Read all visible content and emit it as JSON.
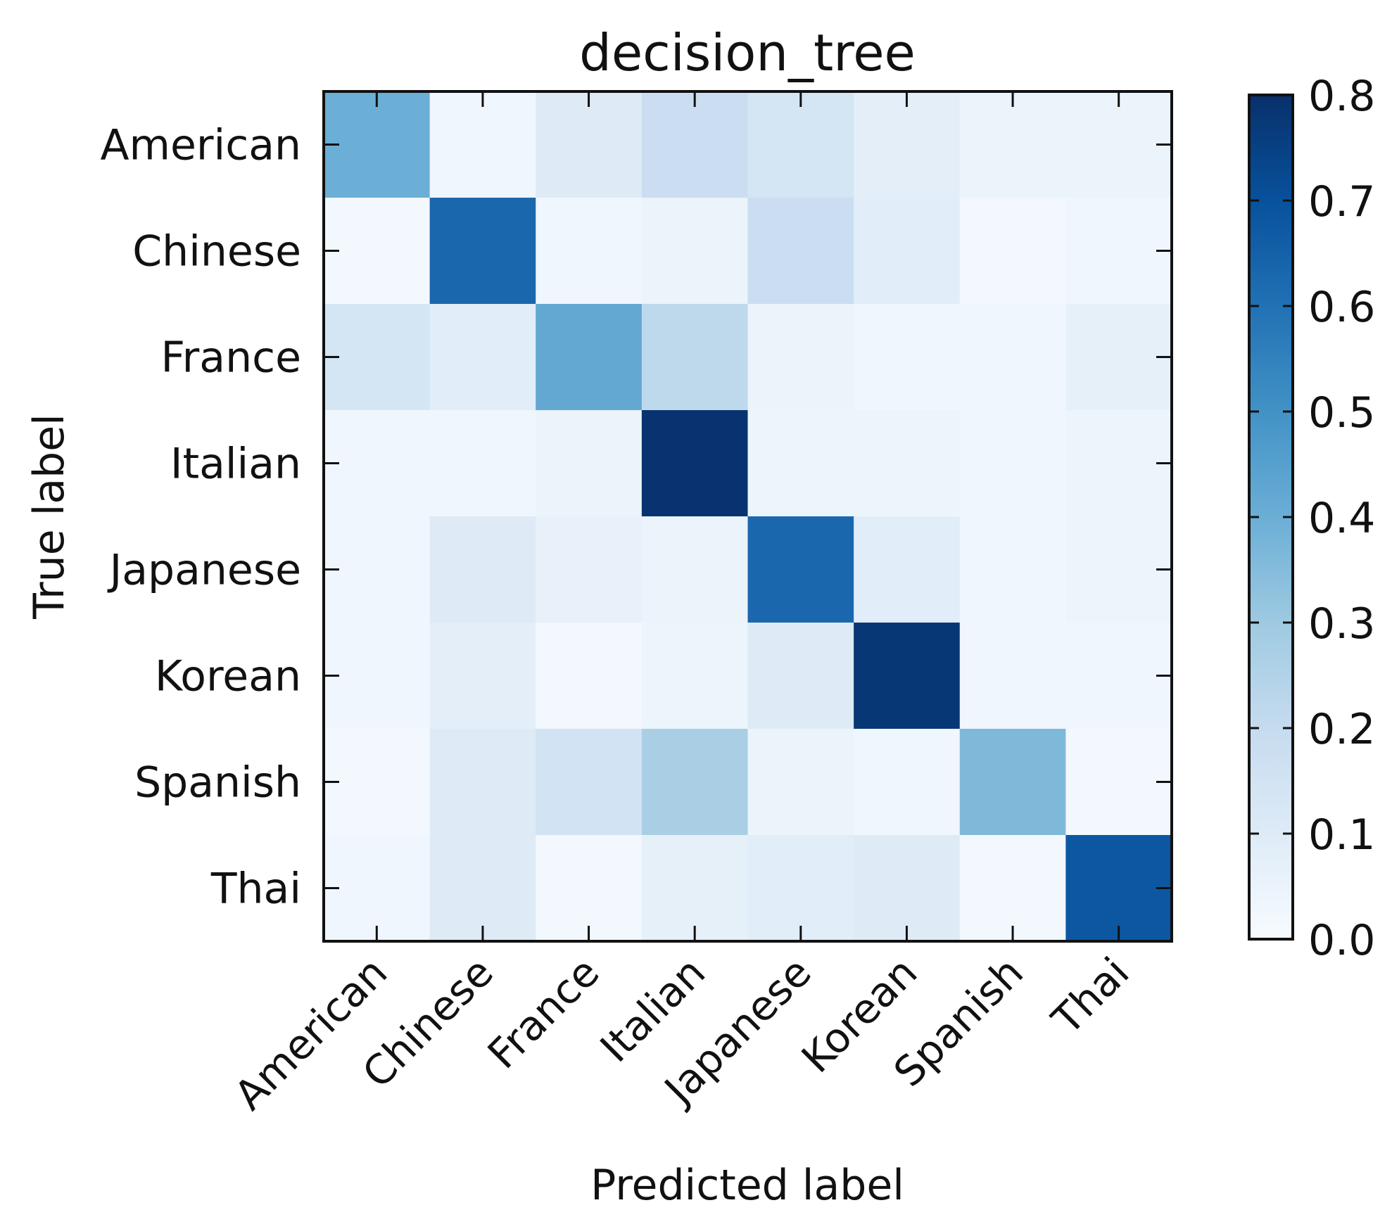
{
  "chart_data": {
    "type": "heatmap",
    "title": "decision_tree",
    "xlabel": "Predicted label",
    "ylabel": "True label",
    "x_categories": [
      "American",
      "Chinese",
      "France",
      "Italian",
      "Japanese",
      "Korean",
      "Spanish",
      "Thai"
    ],
    "y_categories": [
      "American",
      "Chinese",
      "France",
      "Italian",
      "Japanese",
      "Korean",
      "Spanish",
      "Thai"
    ],
    "values": [
      [
        0.4,
        0.03,
        0.1,
        0.18,
        0.14,
        0.08,
        0.05,
        0.05
      ],
      [
        0.02,
        0.63,
        0.03,
        0.05,
        0.18,
        0.09,
        0.02,
        0.03
      ],
      [
        0.14,
        0.09,
        0.42,
        0.22,
        0.05,
        0.03,
        0.03,
        0.07
      ],
      [
        0.03,
        0.03,
        0.05,
        0.79,
        0.04,
        0.04,
        0.03,
        0.04
      ],
      [
        0.03,
        0.1,
        0.06,
        0.05,
        0.63,
        0.09,
        0.03,
        0.04
      ],
      [
        0.03,
        0.08,
        0.02,
        0.04,
        0.1,
        0.78,
        0.03,
        0.03
      ],
      [
        0.02,
        0.1,
        0.15,
        0.27,
        0.05,
        0.03,
        0.36,
        0.02
      ],
      [
        0.03,
        0.1,
        0.02,
        0.07,
        0.09,
        0.1,
        0.02,
        0.68
      ]
    ],
    "colorbar": {
      "min": 0.0,
      "max": 0.8,
      "ticks": [
        "0.0",
        "0.1",
        "0.2",
        "0.3",
        "0.4",
        "0.5",
        "0.6",
        "0.7",
        "0.8"
      ],
      "colormap": "Blues"
    },
    "colors": {
      "axis": "#111111",
      "blues_low": "#f7fbff",
      "blues_high": "#08306b"
    }
  }
}
